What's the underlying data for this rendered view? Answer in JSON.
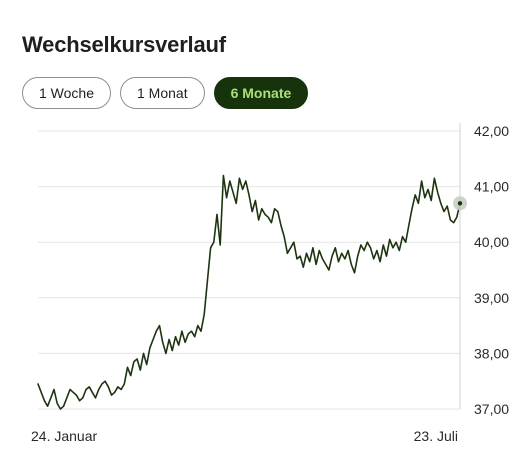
{
  "title": "Wechselkursverlauf",
  "tabs": [
    {
      "label": "1 Woche",
      "active": false
    },
    {
      "label": "1 Monat",
      "active": false
    },
    {
      "label": "6 Monate",
      "active": true
    }
  ],
  "colors": {
    "line": "#1c3410",
    "active_tab_bg": "#16330b",
    "active_tab_text": "#a9e07a",
    "grid": "#e4e4e4",
    "endpoint": "#c6cec2"
  },
  "chart_data": {
    "type": "line",
    "title": "",
    "xlabel": "",
    "ylabel": "",
    "x_tick_labels": [
      "24. Januar",
      "23. Juli"
    ],
    "y_tick_labels": [
      "37,00",
      "38,00",
      "39,00",
      "40,00",
      "41,00",
      "42,00"
    ],
    "y_ticks": [
      37,
      38,
      39,
      40,
      41,
      42
    ],
    "ylim": [
      37.0,
      42.0
    ],
    "grid": true,
    "y_axis_position": "right",
    "series": [
      {
        "values": [
          37.45,
          37.3,
          37.15,
          37.05,
          37.2,
          37.35,
          37.1,
          37.0,
          37.05,
          37.2,
          37.35,
          37.3,
          37.25,
          37.15,
          37.2,
          37.35,
          37.4,
          37.3,
          37.2,
          37.35,
          37.45,
          37.5,
          37.4,
          37.25,
          37.3,
          37.4,
          37.35,
          37.45,
          37.75,
          37.6,
          37.85,
          37.9,
          37.7,
          38.0,
          37.8,
          38.1,
          38.25,
          38.4,
          38.5,
          38.2,
          38.0,
          38.25,
          38.05,
          38.3,
          38.15,
          38.4,
          38.2,
          38.35,
          38.4,
          38.3,
          38.5,
          38.4,
          38.7,
          39.3,
          39.9,
          40.0,
          40.5,
          39.95,
          41.2,
          40.8,
          41.1,
          40.9,
          40.7,
          41.15,
          40.95,
          41.1,
          40.85,
          40.55,
          40.75,
          40.4,
          40.6,
          40.5,
          40.45,
          40.35,
          40.6,
          40.55,
          40.3,
          40.1,
          39.8,
          39.9,
          40.0,
          39.7,
          39.75,
          39.55,
          39.8,
          39.65,
          39.9,
          39.6,
          39.85,
          39.7,
          39.6,
          39.5,
          39.75,
          39.9,
          39.65,
          39.8,
          39.7,
          39.85,
          39.6,
          39.45,
          39.75,
          39.95,
          39.85,
          40.0,
          39.9,
          39.7,
          39.85,
          39.65,
          39.95,
          39.75,
          40.05,
          39.9,
          40.0,
          39.85,
          40.1,
          40.0,
          40.3,
          40.6,
          40.85,
          40.7,
          41.1,
          40.8,
          40.95,
          40.75,
          41.15,
          40.9,
          40.7,
          40.55,
          40.65,
          40.4,
          40.35,
          40.45,
          40.7
        ]
      }
    ]
  }
}
